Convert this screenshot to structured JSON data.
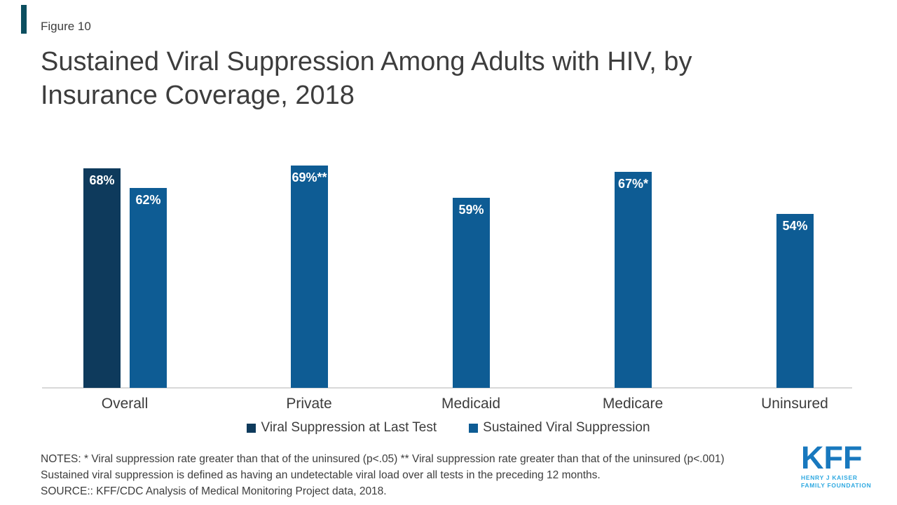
{
  "page": {
    "figure_label": "Figure 10",
    "title_line1": "Sustained Viral Suppression Among Adults with HIV, by",
    "title_line2": "Insurance Coverage, 2018"
  },
  "chart_data": {
    "type": "bar",
    "title": "Sustained Viral Suppression Among Adults with HIV, by Insurance Coverage, 2018",
    "categories": [
      "Overall",
      "Private",
      "Medicaid",
      "Medicare",
      "Uninsured"
    ],
    "series": [
      {
        "name": "Viral Suppression at Last Test",
        "color": "#0E3A5C",
        "values": [
          68,
          null,
          null,
          null,
          null
        ],
        "labels": [
          "68%",
          null,
          null,
          null,
          null
        ]
      },
      {
        "name": "Sustained Viral Suppression",
        "color": "#0E5C94",
        "values": [
          62,
          69,
          59,
          67,
          54
        ],
        "labels": [
          "62%",
          "69%**",
          "59%",
          "67%*",
          "54%"
        ]
      }
    ],
    "unit": "%",
    "ylim": [
      0,
      100
    ],
    "grid": false,
    "legend_position": "bottom"
  },
  "notes": {
    "line1": "NOTES: * Viral suppression rate greater than that of the uninsured (p<.05) ** Viral suppression rate greater than that of the uninsured (p<.001)",
    "line2": "Sustained viral suppression is defined as having an undetectable viral load over all tests in the preceding 12 months.",
    "line3": "SOURCE:: KFF/CDC Analysis of Medical Monitoring Project data, 2018."
  },
  "logo": {
    "kff": "KFF",
    "tagline_line1": "HENRY J KAISER",
    "tagline_line2": "FAMILY FOUNDATION"
  },
  "colors": {
    "accent_bar": "#0B4E5F",
    "navy": "#0E3A5C",
    "blue": "#0E5C94",
    "logo_blue": "#1878BE",
    "logo_light_blue": "#2FA9E1",
    "axis_line": "#D9D9D9",
    "text": "#3D3D3D"
  }
}
